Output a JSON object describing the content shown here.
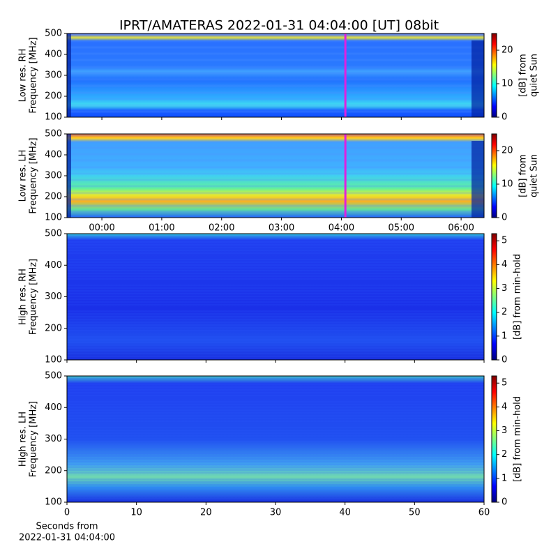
{
  "chart_data": [
    {
      "type": "heatmap",
      "title": "IPRT/AMATERAS 2022-01-31 04:04:00 [UT]   08bit",
      "ylabel": [
        "Low res. RH",
        "Frequency [MHz]"
      ],
      "ylim": [
        100,
        500
      ],
      "yticks": [
        100,
        200,
        300,
        400,
        500
      ],
      "xlim": [
        -0.583,
        6.383
      ],
      "marker_x": 4.0667,
      "marker_color": "#e020e0",
      "colorbar": {
        "label": [
          "[dB] from",
          "quiet Sun"
        ],
        "lim": [
          0,
          25
        ],
        "ticks": [
          0,
          10,
          20
        ]
      }
    },
    {
      "type": "heatmap",
      "ylabel": [
        "Low res. LH",
        "Frequency [MHz]"
      ],
      "ylim": [
        100,
        500
      ],
      "yticks": [
        100,
        200,
        300,
        400,
        500
      ],
      "xlim": [
        -0.583,
        6.383
      ],
      "xticks": [
        {
          "value": 0,
          "label": "00:00"
        },
        {
          "value": 1,
          "label": "01:00"
        },
        {
          "value": 2,
          "label": "02:00"
        },
        {
          "value": 3,
          "label": "03:00"
        },
        {
          "value": 4,
          "label": "04:00"
        },
        {
          "value": 5,
          "label": "05:00"
        },
        {
          "value": 6,
          "label": "06:00"
        }
      ],
      "marker_x": 4.0667,
      "marker_color": "#e020e0",
      "colorbar": {
        "label": [
          "[dB] from",
          "quiet Sun"
        ],
        "lim": [
          0,
          25
        ],
        "ticks": [
          0,
          10,
          20
        ]
      }
    },
    {
      "type": "heatmap",
      "ylabel": [
        "High res. RH",
        "Frequency [MHz]"
      ],
      "ylim": [
        100,
        500
      ],
      "yticks": [
        100,
        200,
        300,
        400,
        500
      ],
      "xlim": [
        0,
        60
      ],
      "colorbar": {
        "label": [
          "[dB] from min-hold"
        ],
        "lim": [
          0,
          5.3
        ],
        "ticks": [
          0,
          1,
          2,
          3,
          4,
          5
        ]
      }
    },
    {
      "type": "heatmap",
      "ylabel": [
        "High res. LH",
        "Frequency [MHz]"
      ],
      "ylim": [
        100,
        500
      ],
      "yticks": [
        100,
        200,
        300,
        400,
        500
      ],
      "xlim": [
        0,
        60
      ],
      "xticks": [
        0,
        10,
        20,
        30,
        40,
        50,
        60
      ],
      "xlabel": [
        "Seconds from",
        "2022-01-31 04:04:00"
      ],
      "colorbar": {
        "label": [
          "[dB] from min-hold"
        ],
        "lim": [
          0,
          5.3
        ],
        "ticks": [
          0,
          1,
          2,
          3,
          4,
          5
        ]
      }
    }
  ]
}
